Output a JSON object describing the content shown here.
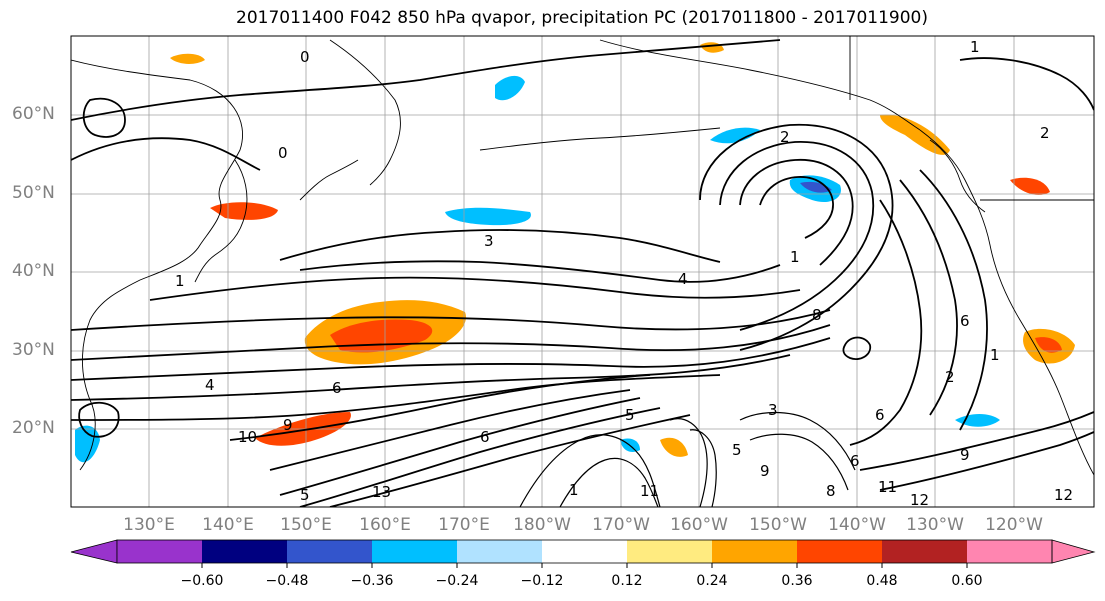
{
  "title": "2017011400 F042 850 hPa qvapor, precipitation PC (2017011800 - 2017011900)",
  "lat_labels": [
    "60°N",
    "50°N",
    "40°N",
    "30°N",
    "20°N"
  ],
  "lon_labels": [
    "130°E",
    "140°E",
    "150°E",
    "160°E",
    "170°E",
    "180°W",
    "170°W",
    "160°W",
    "150°W",
    "140°W",
    "130°W",
    "120°W"
  ],
  "colorbar": {
    "ticks": [
      "−0.60",
      "−0.48",
      "−0.36",
      "−0.24",
      "−0.12",
      "0.12",
      "0.24",
      "0.36",
      "0.48",
      "0.60"
    ],
    "colors": [
      "#9933cc",
      "#000080",
      "#3355cc",
      "#00bfff",
      "#b0e2ff",
      "#ffffff",
      "#ffeb80",
      "#ffa500",
      "#ff4500",
      "#b22222",
      "#ff85b0"
    ]
  },
  "contour_labels": [
    "0",
    "0",
    "1",
    "2",
    "2",
    "3",
    "4",
    "1",
    "6",
    "1",
    "6",
    "2",
    "1",
    "6",
    "4",
    "10",
    "9",
    "6",
    "8",
    "13",
    "11",
    "9",
    "8",
    "11",
    "12",
    "9",
    "3",
    "5",
    "5",
    "6",
    "5",
    "1",
    "12"
  ]
}
